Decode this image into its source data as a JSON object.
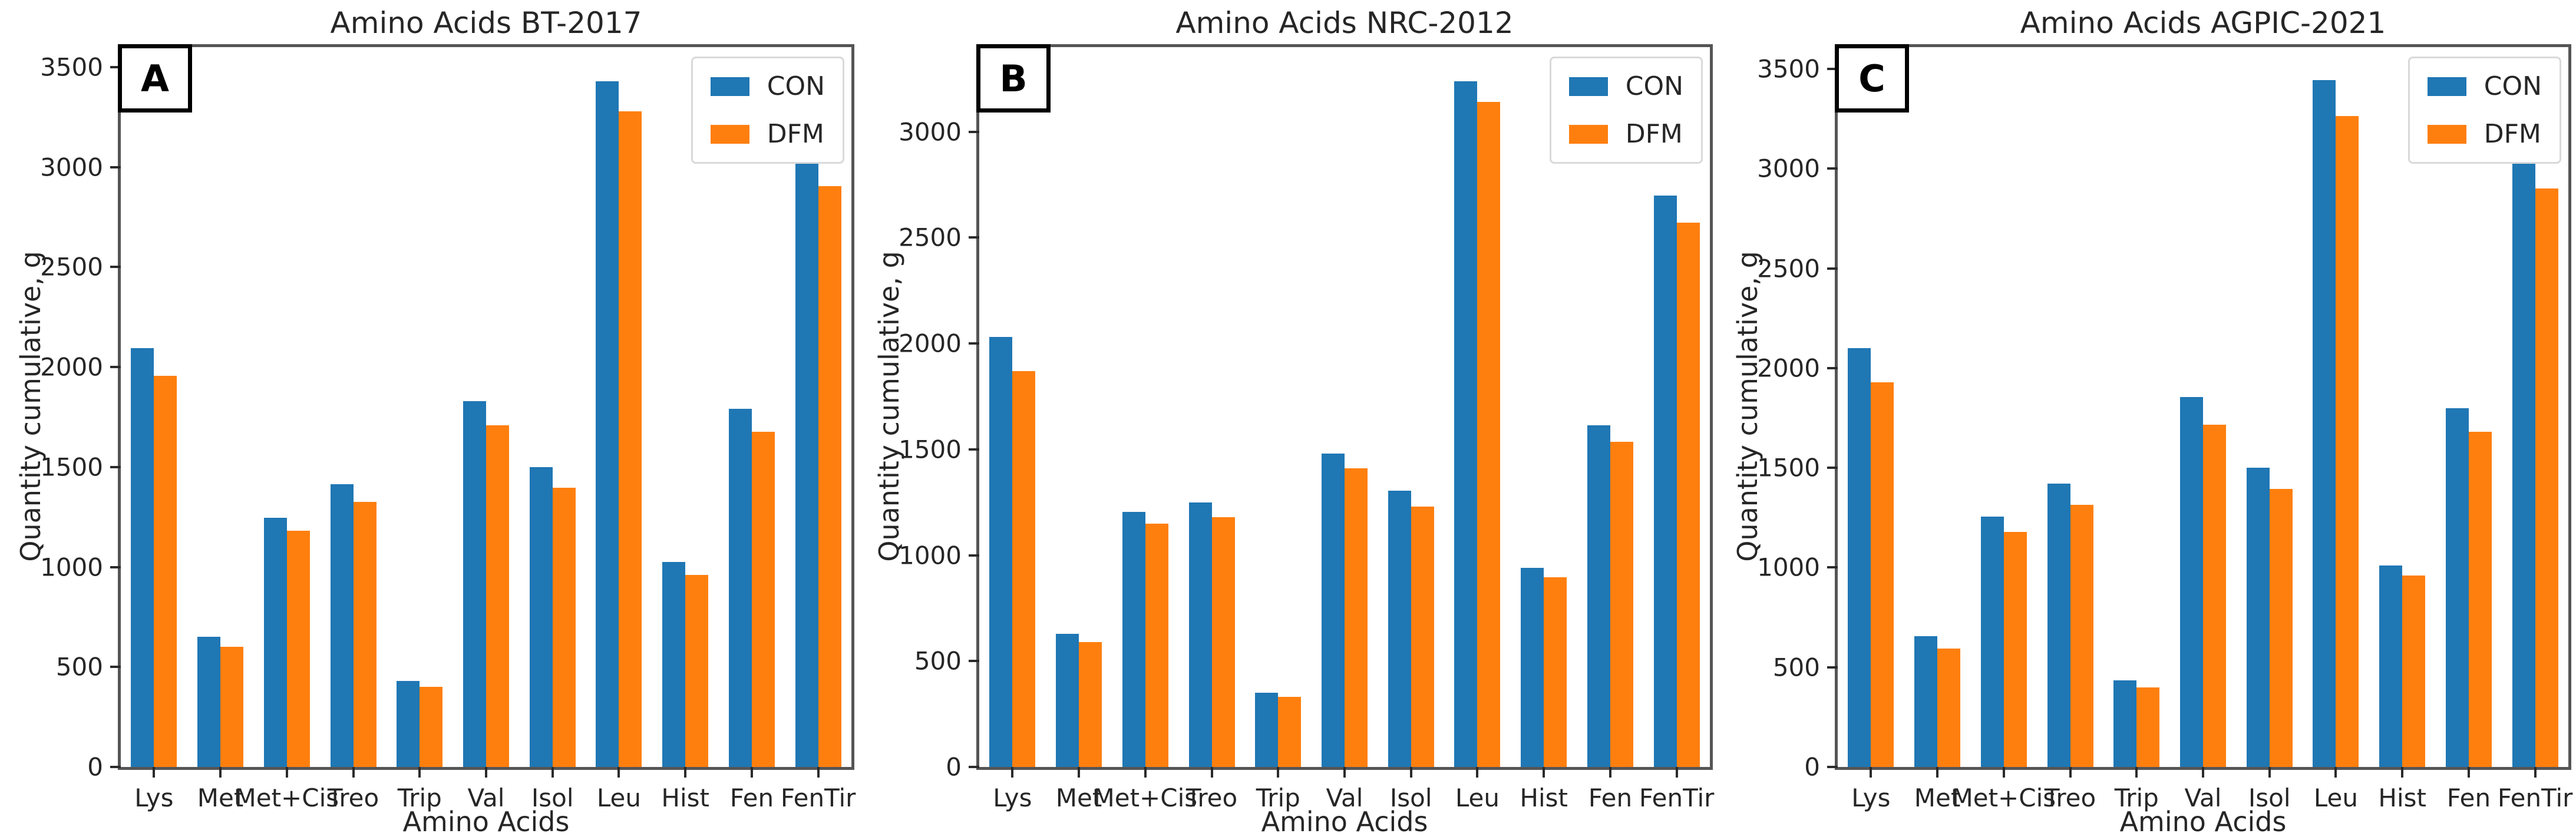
{
  "figure": {
    "background": "#ffffff",
    "series_colors": {
      "CON": "#1f77b4",
      "DFM": "#ff7f0e"
    }
  },
  "chart_data": [
    {
      "type": "bar",
      "panel_label": "A",
      "title": "Amino Acids BT-2017",
      "xlabel": "Amino Acids",
      "ylabel": "Quantity cumulative, g",
      "categories": [
        "Lys",
        "Met",
        "Met+Cis",
        "Treo",
        "Trip",
        "Val",
        "Isol",
        "Leu",
        "Hist",
        "Fen",
        "FenTir"
      ],
      "series": [
        {
          "name": "CON",
          "color": "#1f77b4",
          "values": [
            2095,
            650,
            1245,
            1415,
            430,
            1830,
            1500,
            3430,
            1025,
            1790,
            3080
          ]
        },
        {
          "name": "DFM",
          "color": "#ff7f0e",
          "values": [
            1955,
            600,
            1180,
            1325,
            400,
            1710,
            1395,
            3280,
            960,
            1675,
            2905
          ]
        }
      ],
      "ylim": [
        0,
        3600
      ],
      "yticks": [
        0,
        500,
        1000,
        1500,
        2000,
        2500,
        3000,
        3500
      ],
      "legend_position": "upper right",
      "grid": false
    },
    {
      "type": "bar",
      "panel_label": "B",
      "title": "Amino Acids NRC-2012",
      "xlabel": "Amino Acids",
      "ylabel": "Quantity cumulative, g",
      "categories": [
        "Lys",
        "Met",
        "Met+Cis",
        "Treo",
        "Trip",
        "Val",
        "Isol",
        "Leu",
        "Hist",
        "Fen",
        "FenTir"
      ],
      "series": [
        {
          "name": "CON",
          "color": "#1f77b4",
          "values": [
            2030,
            630,
            1205,
            1250,
            350,
            1480,
            1305,
            3240,
            940,
            1615,
            2700
          ]
        },
        {
          "name": "DFM",
          "color": "#ff7f0e",
          "values": [
            1870,
            590,
            1150,
            1180,
            330,
            1410,
            1230,
            3140,
            895,
            1535,
            2570
          ]
        }
      ],
      "ylim": [
        0,
        3400
      ],
      "yticks": [
        0,
        500,
        1000,
        1500,
        2000,
        2500,
        3000
      ],
      "legend_position": "upper right",
      "grid": false
    },
    {
      "type": "bar",
      "panel_label": "C",
      "title": "Amino Acids AGPIC-2021",
      "xlabel": "Amino Acids",
      "ylabel": "Quantity cumulative, g",
      "categories": [
        "Lys",
        "Met",
        "Met+Cis",
        "Treo",
        "Trip",
        "Val",
        "Isol",
        "Leu",
        "Hist",
        "Fen",
        "FenTir"
      ],
      "series": [
        {
          "name": "CON",
          "color": "#1f77b4",
          "values": [
            2100,
            655,
            1255,
            1420,
            435,
            1855,
            1500,
            3445,
            1010,
            1800,
            3115
          ]
        },
        {
          "name": "DFM",
          "color": "#ff7f0e",
          "values": [
            1930,
            595,
            1180,
            1315,
            400,
            1715,
            1395,
            3265,
            960,
            1680,
            2900
          ]
        }
      ],
      "ylim": [
        0,
        3610
      ],
      "yticks": [
        0,
        500,
        1000,
        1500,
        2000,
        2500,
        3000,
        3500
      ],
      "legend_position": "upper right",
      "grid": false
    }
  ]
}
